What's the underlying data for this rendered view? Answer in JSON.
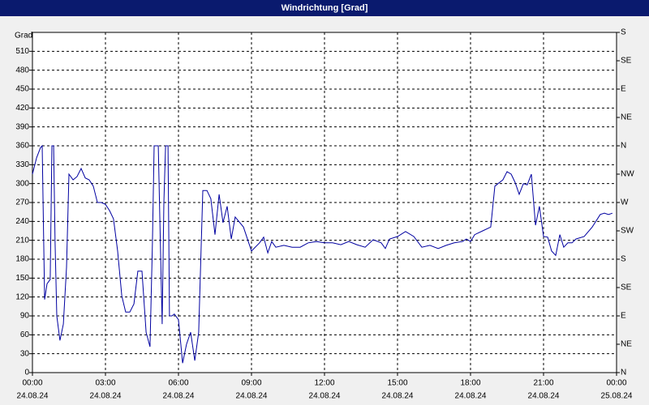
{
  "chart_data": {
    "type": "line",
    "title": "Windrichtung [Grad]",
    "y_label": "Grad",
    "color": "#0000a0",
    "grid": true,
    "xlim": [
      0,
      24
    ],
    "xticks": [
      {
        "value": 0,
        "label": "00:00"
      },
      {
        "value": 3,
        "label": "03:00"
      },
      {
        "value": 6,
        "label": "06:00"
      },
      {
        "value": 9,
        "label": "09:00"
      },
      {
        "value": 12,
        "label": "12:00"
      },
      {
        "value": 15,
        "label": "15:00"
      },
      {
        "value": 18,
        "label": "18:00"
      },
      {
        "value": 21,
        "label": "21:00"
      },
      {
        "value": 24,
        "label": "00:00"
      }
    ],
    "xtick_dates": [
      "24.08.24",
      "24.08.24",
      "24.08.24",
      "24.08.24",
      "24.08.24",
      "24.08.24",
      "24.08.24",
      "24.08.24",
      "25.08.24"
    ],
    "ylim": [
      0,
      540
    ],
    "yticks": [
      0,
      30,
      60,
      90,
      120,
      150,
      180,
      210,
      240,
      270,
      300,
      330,
      360,
      390,
      420,
      450,
      480,
      510
    ],
    "y2lim": [
      0,
      540
    ],
    "y2ticks": [
      {
        "value": 0,
        "label": "N"
      },
      {
        "value": 45,
        "label": "NE"
      },
      {
        "value": 90,
        "label": "E"
      },
      {
        "value": 135,
        "label": "SE"
      },
      {
        "value": 180,
        "label": "S"
      },
      {
        "value": 225,
        "label": "SW"
      },
      {
        "value": 270,
        "label": "W"
      },
      {
        "value": 315,
        "label": "NW"
      },
      {
        "value": 360,
        "label": "N"
      },
      {
        "value": 405,
        "label": "NE"
      },
      {
        "value": 450,
        "label": "E"
      },
      {
        "value": 495,
        "label": "SE"
      },
      {
        "value": 540,
        "label": "S"
      }
    ],
    "x": [
      0,
      0.17,
      0.33,
      0.4,
      0.5,
      0.6,
      0.73,
      0.8,
      0.87,
      0.93,
      1.0,
      1.13,
      1.27,
      1.4,
      1.5,
      1.67,
      1.83,
      2.0,
      2.17,
      2.33,
      2.5,
      2.67,
      2.83,
      3.0,
      3.17,
      3.33,
      3.5,
      3.67,
      3.83,
      4.0,
      4.17,
      4.33,
      4.5,
      4.67,
      4.83,
      4.93,
      5.0,
      5.17,
      5.27,
      5.33,
      5.4,
      5.47,
      5.57,
      5.63,
      5.73,
      5.83,
      6.0,
      6.17,
      6.33,
      6.5,
      6.67,
      6.83,
      7.0,
      7.17,
      7.33,
      7.5,
      7.67,
      7.83,
      8.0,
      8.17,
      8.33,
      8.67,
      9.0,
      9.33,
      9.5,
      9.67,
      9.83,
      10.0,
      10.33,
      10.67,
      11.0,
      11.33,
      11.67,
      12.0,
      12.33,
      12.67,
      13.0,
      13.33,
      13.67,
      14.0,
      14.33,
      14.5,
      14.67,
      15.0,
      15.33,
      15.67,
      16.0,
      16.33,
      16.67,
      17.0,
      17.33,
      17.67,
      17.83,
      18.0,
      18.17,
      18.5,
      18.83,
      19.0,
      19.33,
      19.5,
      19.67,
      19.83,
      20.0,
      20.17,
      20.33,
      20.5,
      20.67,
      20.83,
      21.0,
      21.17,
      21.33,
      21.5,
      21.67,
      21.83,
      22.0,
      22.17,
      22.33,
      22.67,
      23.0,
      23.33,
      23.5,
      23.67,
      23.83
    ],
    "values": [
      315,
      341,
      357,
      360,
      116,
      141,
      148,
      360,
      360,
      206,
      90,
      51,
      77,
      167,
      315,
      306,
      311,
      324,
      309,
      306,
      296,
      270,
      270,
      267,
      257,
      244,
      193,
      122,
      96,
      96,
      109,
      161,
      161,
      64,
      41,
      206,
      360,
      360,
      180,
      77,
      270,
      360,
      360,
      90,
      90,
      93,
      84,
      15,
      45,
      64,
      19,
      64,
      289,
      289,
      276,
      219,
      283,
      238,
      264,
      212,
      247,
      231,
      193,
      206,
      215,
      190,
      208,
      199,
      202,
      199,
      199,
      206,
      208,
      206,
      206,
      203,
      208,
      203,
      199,
      211,
      206,
      197,
      212,
      216,
      224,
      216,
      199,
      202,
      197,
      202,
      206,
      208,
      212,
      208,
      219,
      225,
      231,
      296,
      306,
      319,
      315,
      302,
      283,
      300,
      298,
      315,
      234,
      264,
      216,
      215,
      193,
      186,
      219,
      199,
      206,
      206,
      212,
      216,
      231,
      251,
      253,
      251,
      253
    ]
  }
}
